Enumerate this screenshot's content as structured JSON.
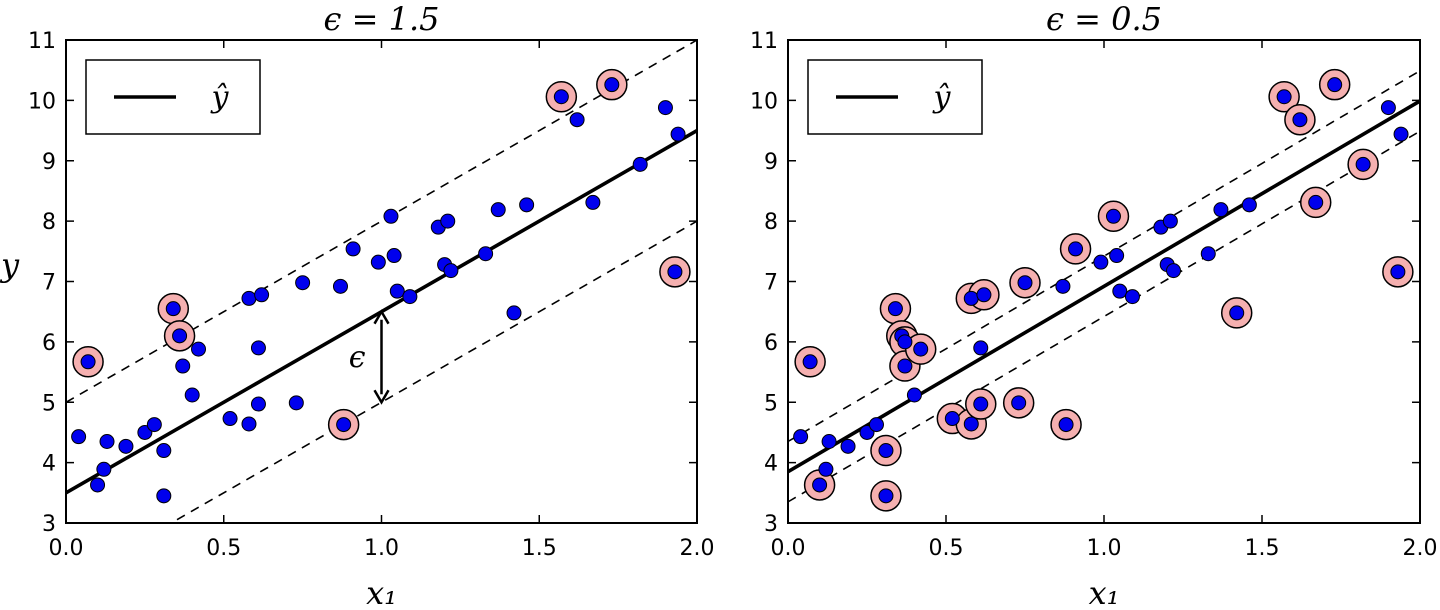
{
  "chart_data": [
    {
      "type": "scatter",
      "title": "ϵ = 1.5",
      "xlabel": "x₁",
      "ylabel": "y",
      "xlim": [
        0,
        2
      ],
      "ylim": [
        3,
        11
      ],
      "xticks": [
        "0.0",
        "0.5",
        "1.0",
        "1.5",
        "2.0"
      ],
      "yticks": [
        "3",
        "4",
        "5",
        "6",
        "7",
        "8",
        "9",
        "10",
        "11"
      ],
      "legend": {
        "location": "top-left",
        "entries": [
          "ŷ"
        ]
      },
      "fit_line": {
        "intercept": 3.5,
        "slope": 3.0
      },
      "epsilon": 1.5,
      "annotation": {
        "text": "ϵ",
        "x": 1.0,
        "y_from": 5.0,
        "y_to": 6.5
      },
      "points": [
        {
          "x": 0.04,
          "y": 4.43
        },
        {
          "x": 0.07,
          "y": 5.67,
          "support": true
        },
        {
          "x": 0.1,
          "y": 3.63
        },
        {
          "x": 0.12,
          "y": 3.89
        },
        {
          "x": 0.13,
          "y": 4.35
        },
        {
          "x": 0.19,
          "y": 4.27
        },
        {
          "x": 0.25,
          "y": 4.5
        },
        {
          "x": 0.28,
          "y": 4.63
        },
        {
          "x": 0.31,
          "y": 4.2
        },
        {
          "x": 0.31,
          "y": 3.45
        },
        {
          "x": 0.34,
          "y": 6.55,
          "support": true
        },
        {
          "x": 0.36,
          "y": 6.1,
          "support": true
        },
        {
          "x": 0.37,
          "y": 5.6
        },
        {
          "x": 0.4,
          "y": 5.12
        },
        {
          "x": 0.42,
          "y": 5.88
        },
        {
          "x": 0.52,
          "y": 4.73
        },
        {
          "x": 0.58,
          "y": 4.64
        },
        {
          "x": 0.58,
          "y": 6.72
        },
        {
          "x": 0.61,
          "y": 5.9
        },
        {
          "x": 0.61,
          "y": 4.97
        },
        {
          "x": 0.62,
          "y": 6.78
        },
        {
          "x": 0.73,
          "y": 4.99
        },
        {
          "x": 0.75,
          "y": 6.98
        },
        {
          "x": 0.87,
          "y": 6.92
        },
        {
          "x": 0.88,
          "y": 4.63,
          "support": true
        },
        {
          "x": 0.91,
          "y": 7.54
        },
        {
          "x": 0.99,
          "y": 7.32
        },
        {
          "x": 1.03,
          "y": 8.08
        },
        {
          "x": 1.04,
          "y": 7.43
        },
        {
          "x": 1.05,
          "y": 6.84
        },
        {
          "x": 1.09,
          "y": 6.75
        },
        {
          "x": 1.18,
          "y": 7.9
        },
        {
          "x": 1.2,
          "y": 7.28
        },
        {
          "x": 1.21,
          "y": 8.0
        },
        {
          "x": 1.22,
          "y": 7.18
        },
        {
          "x": 1.33,
          "y": 7.46
        },
        {
          "x": 1.37,
          "y": 8.19
        },
        {
          "x": 1.42,
          "y": 6.48
        },
        {
          "x": 1.46,
          "y": 8.27
        },
        {
          "x": 1.57,
          "y": 10.06,
          "support": true
        },
        {
          "x": 1.62,
          "y": 9.68
        },
        {
          "x": 1.67,
          "y": 8.31
        },
        {
          "x": 1.73,
          "y": 10.26,
          "support": true
        },
        {
          "x": 1.82,
          "y": 8.94
        },
        {
          "x": 1.9,
          "y": 9.88
        },
        {
          "x": 1.93,
          "y": 7.16,
          "support": true
        },
        {
          "x": 1.94,
          "y": 9.44
        }
      ]
    },
    {
      "type": "scatter",
      "title": "ϵ = 0.5",
      "xlabel": "x₁",
      "ylabel": "",
      "xlim": [
        0,
        2
      ],
      "ylim": [
        3,
        11
      ],
      "xticks": [
        "0.0",
        "0.5",
        "1.0",
        "1.5",
        "2.0"
      ],
      "yticks": [
        "3",
        "4",
        "5",
        "6",
        "7",
        "8",
        "9",
        "10",
        "11"
      ],
      "legend": {
        "location": "top-left",
        "entries": [
          "ŷ"
        ]
      },
      "fit_line": {
        "intercept": 3.85,
        "slope": 3.07
      },
      "epsilon": 0.5,
      "points": [
        {
          "x": 0.04,
          "y": 4.43
        },
        {
          "x": 0.07,
          "y": 5.67,
          "support": true
        },
        {
          "x": 0.1,
          "y": 3.63,
          "support": true
        },
        {
          "x": 0.12,
          "y": 3.89
        },
        {
          "x": 0.13,
          "y": 4.35
        },
        {
          "x": 0.19,
          "y": 4.27
        },
        {
          "x": 0.25,
          "y": 4.5
        },
        {
          "x": 0.28,
          "y": 4.63
        },
        {
          "x": 0.31,
          "y": 4.2,
          "support": true
        },
        {
          "x": 0.31,
          "y": 3.45,
          "support": true
        },
        {
          "x": 0.34,
          "y": 6.55,
          "support": true
        },
        {
          "x": 0.36,
          "y": 6.1,
          "support": true
        },
        {
          "x": 0.37,
          "y": 6.0,
          "support": true
        },
        {
          "x": 0.37,
          "y": 5.6,
          "support": true
        },
        {
          "x": 0.4,
          "y": 5.12
        },
        {
          "x": 0.42,
          "y": 5.88,
          "support": true
        },
        {
          "x": 0.52,
          "y": 4.73,
          "support": true
        },
        {
          "x": 0.58,
          "y": 4.64,
          "support": true
        },
        {
          "x": 0.58,
          "y": 6.72,
          "support": true
        },
        {
          "x": 0.61,
          "y": 5.9
        },
        {
          "x": 0.61,
          "y": 4.97,
          "support": true
        },
        {
          "x": 0.62,
          "y": 6.78,
          "support": true
        },
        {
          "x": 0.73,
          "y": 4.99,
          "support": true
        },
        {
          "x": 0.75,
          "y": 6.98,
          "support": true
        },
        {
          "x": 0.87,
          "y": 6.92
        },
        {
          "x": 0.88,
          "y": 4.63,
          "support": true
        },
        {
          "x": 0.91,
          "y": 7.54,
          "support": true
        },
        {
          "x": 0.99,
          "y": 7.32
        },
        {
          "x": 1.03,
          "y": 8.08,
          "support": true
        },
        {
          "x": 1.04,
          "y": 7.43
        },
        {
          "x": 1.05,
          "y": 6.84
        },
        {
          "x": 1.09,
          "y": 6.75
        },
        {
          "x": 1.18,
          "y": 7.9
        },
        {
          "x": 1.2,
          "y": 7.28
        },
        {
          "x": 1.21,
          "y": 8.0
        },
        {
          "x": 1.22,
          "y": 7.18
        },
        {
          "x": 1.33,
          "y": 7.46
        },
        {
          "x": 1.37,
          "y": 8.19
        },
        {
          "x": 1.42,
          "y": 6.48,
          "support": true
        },
        {
          "x": 1.46,
          "y": 8.27
        },
        {
          "x": 1.57,
          "y": 10.06,
          "support": true
        },
        {
          "x": 1.62,
          "y": 9.68,
          "support": true
        },
        {
          "x": 1.67,
          "y": 8.31,
          "support": true
        },
        {
          "x": 1.73,
          "y": 10.26,
          "support": true
        },
        {
          "x": 1.82,
          "y": 8.94,
          "support": true
        },
        {
          "x": 1.9,
          "y": 9.88
        },
        {
          "x": 1.93,
          "y": 7.16,
          "support": true
        },
        {
          "x": 1.94,
          "y": 9.44
        }
      ]
    }
  ],
  "colors": {
    "point": "#0000ee",
    "support_fill": "#f5b0b0",
    "line": "#000000"
  }
}
